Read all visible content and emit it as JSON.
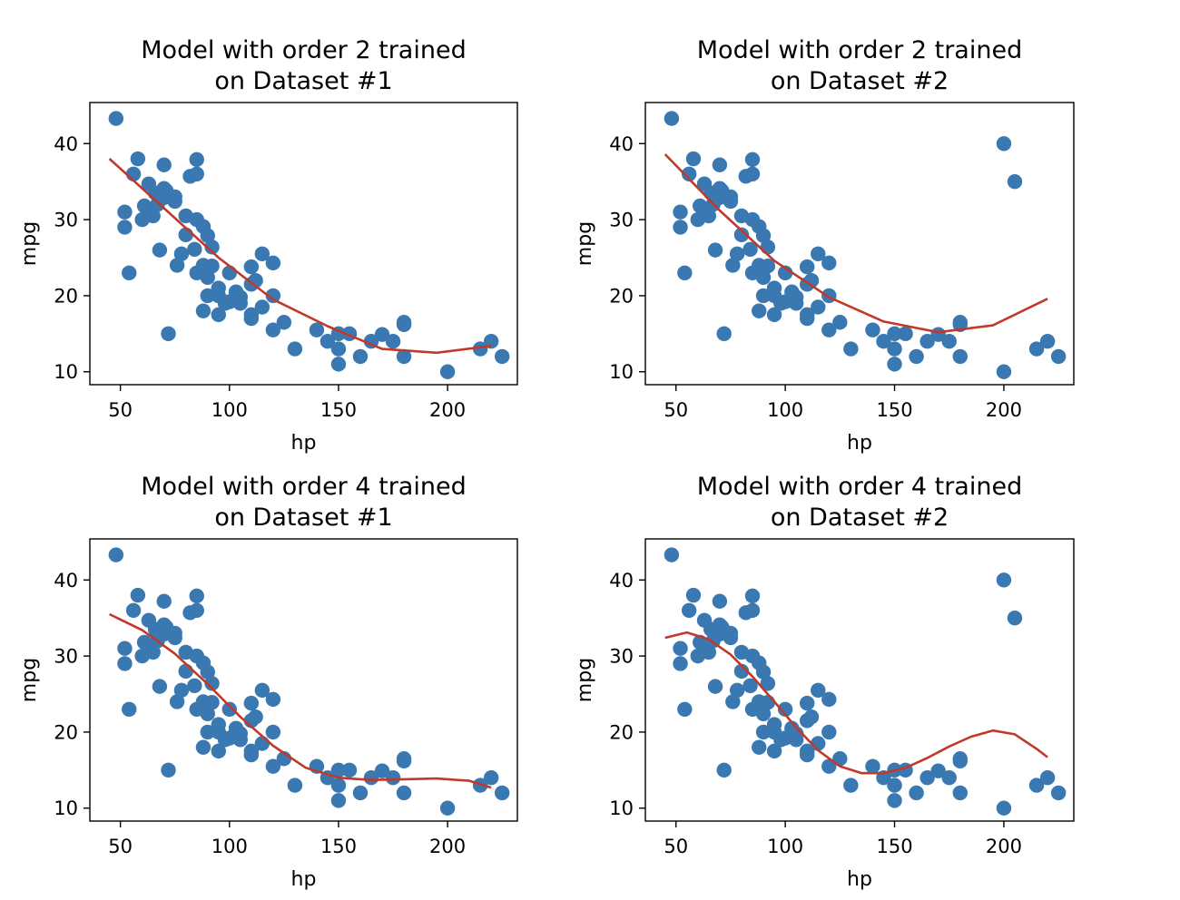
{
  "colors": {
    "points": "#3a78b2",
    "curve": "#c0392b",
    "axes": "#000000",
    "background": "#ffffff"
  },
  "chart_data": [
    {
      "type": "scatter",
      "title_line1": "Model with order 2 trained",
      "title_line2": "on Dataset #1",
      "xlabel": "hp",
      "ylabel": "mpg",
      "xlim": [
        36,
        232
      ],
      "ylim": [
        8.3,
        45.4
      ],
      "xticks": [
        50,
        100,
        150,
        200
      ],
      "yticks": [
        10,
        20,
        30,
        40
      ],
      "series": [
        {
          "name": "data",
          "kind": "scatter",
          "x": [
            48,
            52,
            52,
            54,
            56,
            58,
            60,
            61,
            63,
            65,
            66,
            67,
            68,
            70,
            70,
            70,
            71,
            72,
            75,
            75,
            76,
            78,
            80,
            80,
            82,
            84,
            85,
            85,
            85,
            85,
            88,
            88,
            88,
            90,
            90,
            90,
            92,
            92,
            95,
            95,
            95,
            98,
            100,
            100,
            103,
            105,
            105,
            110,
            110,
            110,
            110,
            112,
            115,
            115,
            120,
            120,
            120,
            125,
            130,
            140,
            145,
            150,
            150,
            150,
            155,
            160,
            165,
            170,
            175,
            180,
            180,
            180,
            200,
            215,
            220,
            225
          ],
          "y": [
            43.3,
            31,
            29,
            23,
            36,
            38,
            30,
            31.8,
            34.7,
            30.5,
            33.5,
            32,
            26,
            37.2,
            34.1,
            32.9,
            33.8,
            15,
            32.4,
            33,
            24,
            25.5,
            30.5,
            28,
            35.7,
            26.1,
            36,
            37.9,
            30.0,
            23,
            24,
            29.1,
            18,
            22.4,
            20,
            27.9,
            26.4,
            23.9,
            17.5,
            21,
            20,
            19,
            19.2,
            23,
            20.5,
            19.8,
            19,
            23.8,
            21.5,
            17.5,
            17,
            22,
            25.5,
            18.5,
            24.3,
            20,
            15.5,
            16.5,
            13,
            15.5,
            14,
            15,
            11,
            13,
            15,
            12,
            14,
            14.9,
            14,
            16.2,
            16.5,
            12,
            10,
            13,
            14,
            12
          ]
        },
        {
          "name": "fit",
          "kind": "line",
          "x": [
            45,
            70,
            95,
            120,
            145,
            170,
            195,
            220
          ],
          "y": [
            38,
            31.5,
            25,
            19.5,
            16,
            13,
            12.5,
            13.4
          ]
        }
      ]
    },
    {
      "type": "scatter",
      "title_line1": "Model with order 2 trained",
      "title_line2": "on Dataset #2",
      "xlabel": "hp",
      "ylabel": "mpg",
      "xlim": [
        36,
        232
      ],
      "ylim": [
        8.3,
        45.4
      ],
      "xticks": [
        50,
        100,
        150,
        200
      ],
      "yticks": [
        10,
        20,
        30,
        40
      ],
      "series": [
        {
          "name": "data",
          "kind": "scatter",
          "x": [
            48,
            52,
            52,
            54,
            56,
            58,
            60,
            61,
            63,
            65,
            66,
            67,
            68,
            70,
            70,
            70,
            71,
            72,
            75,
            75,
            76,
            78,
            80,
            80,
            82,
            84,
            85,
            85,
            85,
            85,
            88,
            88,
            88,
            90,
            90,
            90,
            92,
            92,
            95,
            95,
            95,
            98,
            100,
            100,
            103,
            105,
            105,
            110,
            110,
            110,
            110,
            112,
            115,
            115,
            120,
            120,
            120,
            125,
            130,
            140,
            145,
            150,
            150,
            150,
            155,
            160,
            165,
            170,
            175,
            180,
            180,
            180,
            200,
            200,
            205,
            215,
            220,
            225
          ],
          "y": [
            43.3,
            31,
            29,
            23,
            36,
            38,
            30,
            31.8,
            34.7,
            30.5,
            33.5,
            32,
            26,
            37.2,
            34.1,
            32.9,
            33.8,
            15,
            32.4,
            33,
            24,
            25.5,
            30.5,
            28,
            35.7,
            26.1,
            36,
            37.9,
            30.0,
            23,
            24,
            29.1,
            18,
            22.4,
            20,
            27.9,
            26.4,
            23.9,
            17.5,
            21,
            20,
            19,
            19.2,
            23,
            20.5,
            19.8,
            19,
            23.8,
            21.5,
            17.5,
            17,
            22,
            25.5,
            18.5,
            24.3,
            20,
            15.5,
            16.5,
            13,
            15.5,
            14,
            15,
            11,
            13,
            15,
            12,
            14,
            14.9,
            14,
            16.2,
            16.5,
            12,
            10,
            40,
            35,
            13,
            14,
            12
          ]
        },
        {
          "name": "fit",
          "kind": "line",
          "x": [
            45,
            70,
            95,
            120,
            145,
            170,
            195,
            220
          ],
          "y": [
            38.6,
            31.2,
            24.6,
            19.8,
            16.6,
            15.2,
            16.1,
            19.6
          ]
        }
      ]
    },
    {
      "type": "scatter",
      "title_line1": "Model with order 4 trained",
      "title_line2": "on Dataset #1",
      "xlabel": "hp",
      "ylabel": "mpg",
      "xlim": [
        36,
        232
      ],
      "ylim": [
        8.3,
        45.4
      ],
      "xticks": [
        50,
        100,
        150,
        200
      ],
      "yticks": [
        10,
        20,
        30,
        40
      ],
      "series": [
        {
          "name": "data",
          "kind": "scatter",
          "x": [
            48,
            52,
            52,
            54,
            56,
            58,
            60,
            61,
            63,
            65,
            66,
            67,
            68,
            70,
            70,
            70,
            71,
            72,
            75,
            75,
            76,
            78,
            80,
            80,
            82,
            84,
            85,
            85,
            85,
            85,
            88,
            88,
            88,
            90,
            90,
            90,
            92,
            92,
            95,
            95,
            95,
            98,
            100,
            100,
            103,
            105,
            105,
            110,
            110,
            110,
            110,
            112,
            115,
            115,
            120,
            120,
            120,
            125,
            130,
            140,
            145,
            150,
            150,
            150,
            155,
            160,
            165,
            170,
            175,
            180,
            180,
            180,
            200,
            215,
            220,
            225
          ],
          "y": [
            43.3,
            31,
            29,
            23,
            36,
            38,
            30,
            31.8,
            34.7,
            30.5,
            33.5,
            32,
            26,
            37.2,
            34.1,
            32.9,
            33.8,
            15,
            32.4,
            33,
            24,
            25.5,
            30.5,
            28,
            35.7,
            26.1,
            36,
            37.9,
            30.0,
            23,
            24,
            29.1,
            18,
            22.4,
            20,
            27.9,
            26.4,
            23.9,
            17.5,
            21,
            20,
            19,
            19.2,
            23,
            20.5,
            19.8,
            19,
            23.8,
            21.5,
            17.5,
            17,
            22,
            25.5,
            18.5,
            24.3,
            20,
            15.5,
            16.5,
            13,
            15.5,
            14,
            15,
            11,
            13,
            15,
            12,
            14,
            14.9,
            14,
            16.2,
            16.5,
            12,
            10,
            13,
            14,
            12
          ]
        },
        {
          "name": "fit",
          "kind": "line",
          "x": [
            45,
            60,
            75,
            90,
            105,
            120,
            135,
            150,
            165,
            180,
            195,
            210,
            220
          ],
          "y": [
            35.5,
            33.4,
            30.3,
            26.3,
            22.0,
            18.2,
            15.3,
            14.0,
            13.7,
            13.8,
            13.9,
            13.6,
            12.7
          ]
        }
      ]
    },
    {
      "type": "scatter",
      "title_line1": "Model with order 4 trained",
      "title_line2": "on Dataset #2",
      "xlabel": "hp",
      "ylabel": "mpg",
      "xlim": [
        36,
        232
      ],
      "ylim": [
        8.3,
        45.4
      ],
      "xticks": [
        50,
        100,
        150,
        200
      ],
      "yticks": [
        10,
        20,
        30,
        40
      ],
      "series": [
        {
          "name": "data",
          "kind": "scatter",
          "x": [
            48,
            52,
            52,
            54,
            56,
            58,
            60,
            61,
            63,
            65,
            66,
            67,
            68,
            70,
            70,
            70,
            71,
            72,
            75,
            75,
            76,
            78,
            80,
            80,
            82,
            84,
            85,
            85,
            85,
            85,
            88,
            88,
            88,
            90,
            90,
            90,
            92,
            92,
            95,
            95,
            95,
            98,
            100,
            100,
            103,
            105,
            105,
            110,
            110,
            110,
            110,
            112,
            115,
            115,
            120,
            120,
            120,
            125,
            130,
            140,
            145,
            150,
            150,
            150,
            155,
            160,
            165,
            170,
            175,
            180,
            180,
            180,
            200,
            200,
            205,
            215,
            220,
            225
          ],
          "y": [
            43.3,
            31,
            29,
            23,
            36,
            38,
            30,
            31.8,
            34.7,
            30.5,
            33.5,
            32,
            26,
            37.2,
            34.1,
            32.9,
            33.8,
            15,
            32.4,
            33,
            24,
            25.5,
            30.5,
            28,
            35.7,
            26.1,
            36,
            37.9,
            30.0,
            23,
            24,
            29.1,
            18,
            22.4,
            20,
            27.9,
            26.4,
            23.9,
            17.5,
            21,
            20,
            19,
            19.2,
            23,
            20.5,
            19.8,
            19,
            23.8,
            21.5,
            17.5,
            17,
            22,
            25.5,
            18.5,
            24.3,
            20,
            15.5,
            16.5,
            13,
            15.5,
            14,
            15,
            11,
            13,
            15,
            12,
            14,
            14.9,
            14,
            16.2,
            16.5,
            12,
            10,
            40,
            35,
            13,
            14,
            12
          ]
        },
        {
          "name": "fit",
          "kind": "line",
          "x": [
            45,
            55,
            65,
            75,
            85,
            95,
            105,
            115,
            125,
            135,
            145,
            155,
            165,
            175,
            185,
            195,
            205,
            215,
            220
          ],
          "y": [
            32.4,
            33.1,
            32.2,
            30.2,
            27.3,
            24.0,
            20.6,
            17.6,
            15.5,
            14.6,
            14.6,
            15.3,
            16.6,
            18.1,
            19.4,
            20.2,
            19.7,
            17.8,
            16.7
          ]
        }
      ]
    }
  ]
}
